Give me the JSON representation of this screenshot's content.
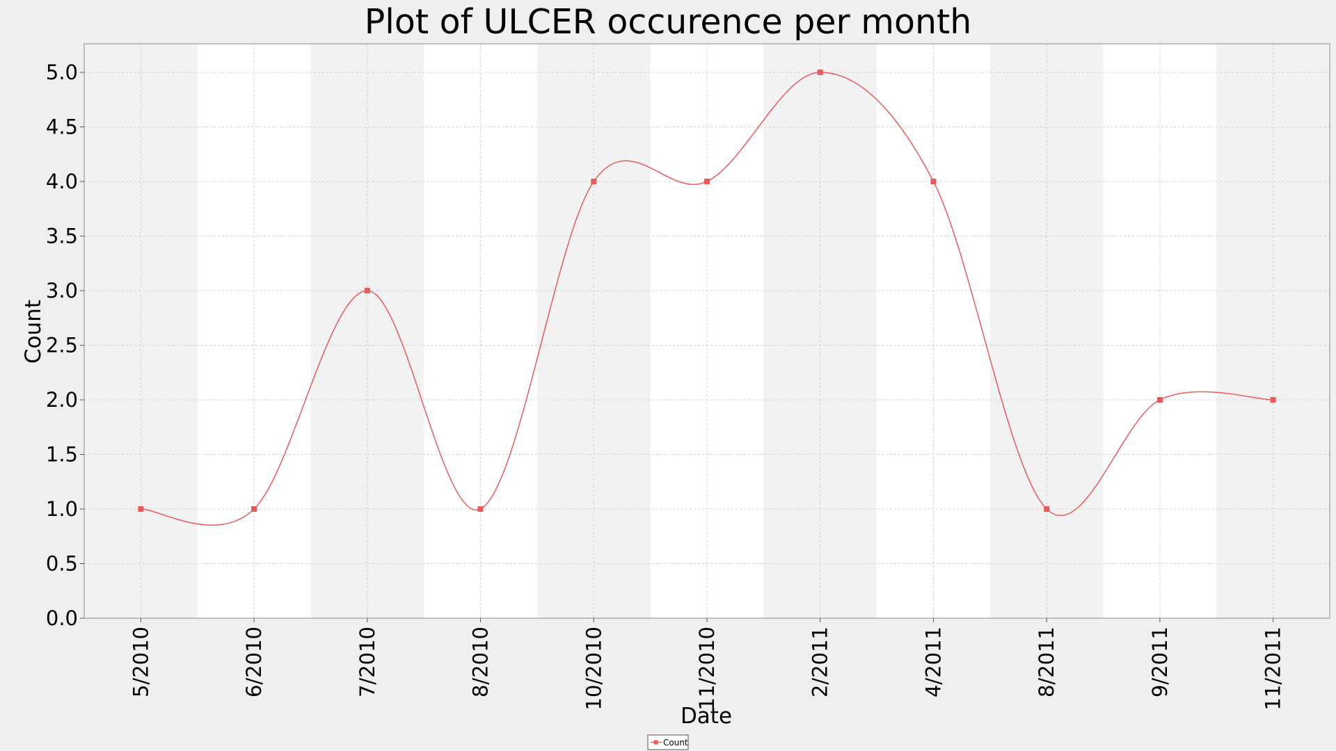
{
  "chart_data": {
    "type": "line",
    "title": "Plot of ULCER occurence per month",
    "xlabel": "Date",
    "ylabel": "Count",
    "ylim": [
      0,
      5.0
    ],
    "yticks": [
      "0.0",
      "0.5",
      "1.0",
      "1.5",
      "2.0",
      "2.5",
      "3.0",
      "3.5",
      "4.0",
      "4.5",
      "5.0"
    ],
    "categories": [
      "5/2010",
      "6/2010",
      "7/2010",
      "8/2010",
      "10/2010",
      "11/2010",
      "2/2011",
      "4/2011",
      "8/2011",
      "9/2011",
      "11/2011"
    ],
    "series": [
      {
        "name": "Count",
        "values": [
          1,
          1,
          3,
          1,
          4,
          4,
          5,
          4,
          1,
          2,
          2
        ]
      }
    ],
    "smoothed": true,
    "grid": true,
    "legend_position": "bottom-center",
    "colors": {
      "series": "#e85a5a",
      "band_dark": "#f2f2f2",
      "band_light": "#ffffff",
      "background": "#efefef"
    }
  }
}
